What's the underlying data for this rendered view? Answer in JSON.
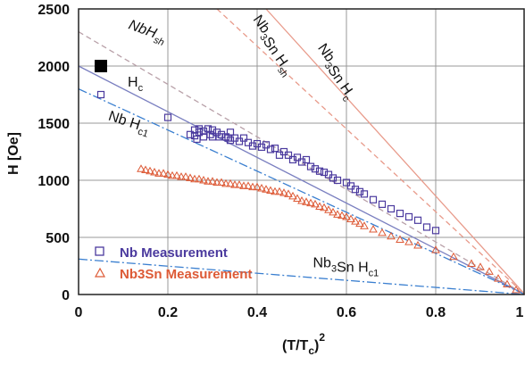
{
  "chart_data": {
    "type": "scatter",
    "xlabel": "(T/T",
    "xlabel_sub": "c",
    "xlabel_sup": "2",
    "ylabel": "H [Oe]",
    "xlim": [
      0,
      1
    ],
    "ylim": [
      0,
      2500
    ],
    "xticks": [
      "0",
      "0.2",
      "0.4",
      "0.6",
      "0.8",
      "1"
    ],
    "yticks": [
      "0",
      "500",
      "1000",
      "1500",
      "2000",
      "2500"
    ],
    "grid": true,
    "colors": {
      "nb": "#4b3a9e",
      "nb3sn": "#dd5a36",
      "hc1_line": "#3a7fd0",
      "nb_hc": "#7a7fc0",
      "nb_hsh": "#b8a0a8",
      "nb3sn_line": "#e89a8a",
      "frame": "#222222",
      "grid": "#999999"
    },
    "lines": [
      {
        "label": "Nb Hsh",
        "style": "dashed",
        "color": "nb_hsh",
        "points": [
          [
            0,
            2300
          ],
          [
            1,
            0
          ]
        ]
      },
      {
        "label": "Nb Hc",
        "style": "solid",
        "color": "nb_hc",
        "points": [
          [
            0,
            2000
          ],
          [
            1,
            0
          ]
        ]
      },
      {
        "label": "Nb Hc1",
        "style": "dashdot",
        "color": "hc1_line",
        "points": [
          [
            0,
            1800
          ],
          [
            1,
            0
          ]
        ]
      },
      {
        "label": "Nb3Sn Hsh",
        "style": "dashed",
        "color": "nb3sn_line",
        "points": [
          [
            0.31,
            2500
          ],
          [
            1,
            0
          ]
        ]
      },
      {
        "label": "Nb3Sn Hc",
        "style": "solid",
        "color": "nb3sn_line",
        "points": [
          [
            0.42,
            2500
          ],
          [
            1,
            0
          ]
        ]
      },
      {
        "label": "Nb3Sn Hc1",
        "style": "dashdot",
        "color": "hc1_line",
        "points": [
          [
            0,
            310
          ],
          [
            1,
            0
          ]
        ]
      }
    ],
    "annotations": [
      {
        "main": "Nb",
        "sub": "",
        "sub2": "",
        "tail": "H",
        "tailsub": "sh",
        "x": 0.11,
        "y": 2330,
        "rotate": 20,
        "italic": true
      },
      {
        "main": "H",
        "sub": "",
        "sub2": "",
        "tail": "",
        "tailsub": "c",
        "x": 0.11,
        "y": 1820,
        "rotate": 0,
        "italic": false
      },
      {
        "main": "Nb H",
        "sub": "",
        "sub2": "",
        "tail": "",
        "tailsub": "c1",
        "x": 0.065,
        "y": 1530,
        "rotate": 18,
        "italic": false
      },
      {
        "main": "Nb",
        "sub": "3",
        "sub2": "",
        "tail": "Sn H",
        "tailsub": "sh",
        "x": 0.39,
        "y": 2410,
        "rotate": 55,
        "italic": false
      },
      {
        "main": "Nb",
        "sub": "3",
        "sub2": "",
        "tail": "Sn H",
        "tailsub": "c",
        "x": 0.535,
        "y": 2160,
        "rotate": 55,
        "italic": false
      },
      {
        "main": "Nb",
        "sub": "3",
        "sub2": "",
        "tail": "Sn H",
        "tailsub": "c1",
        "x": 0.525,
        "y": 240,
        "rotate": 0,
        "italic": false
      }
    ],
    "legend": {
      "position": "bottom-left",
      "entries": [
        {
          "label": "Nb Measurement",
          "marker": "square",
          "color": "nb"
        },
        {
          "label": "Nb3Sn Measurement",
          "marker": "triangle",
          "color": "nb3sn"
        }
      ]
    },
    "series": [
      {
        "name": "Nb Measurement",
        "marker": "square",
        "color": "nb",
        "points": [
          [
            0.05,
            2000
          ],
          [
            0.05,
            1750
          ],
          [
            0.2,
            1550
          ],
          [
            0.25,
            1400
          ],
          [
            0.26,
            1390
          ],
          [
            0.26,
            1440
          ],
          [
            0.265,
            1360
          ],
          [
            0.27,
            1420
          ],
          [
            0.27,
            1450
          ],
          [
            0.28,
            1380
          ],
          [
            0.28,
            1430
          ],
          [
            0.29,
            1450
          ],
          [
            0.295,
            1400
          ],
          [
            0.3,
            1380
          ],
          [
            0.3,
            1440
          ],
          [
            0.31,
            1420
          ],
          [
            0.315,
            1380
          ],
          [
            0.32,
            1400
          ],
          [
            0.33,
            1380
          ],
          [
            0.335,
            1370
          ],
          [
            0.34,
            1350
          ],
          [
            0.34,
            1420
          ],
          [
            0.35,
            1370
          ],
          [
            0.36,
            1340
          ],
          [
            0.37,
            1370
          ],
          [
            0.38,
            1330
          ],
          [
            0.39,
            1300
          ],
          [
            0.4,
            1320
          ],
          [
            0.41,
            1290
          ],
          [
            0.42,
            1310
          ],
          [
            0.43,
            1270
          ],
          [
            0.44,
            1280
          ],
          [
            0.45,
            1220
          ],
          [
            0.46,
            1250
          ],
          [
            0.47,
            1220
          ],
          [
            0.48,
            1180
          ],
          [
            0.49,
            1200
          ],
          [
            0.5,
            1160
          ],
          [
            0.51,
            1180
          ],
          [
            0.52,
            1120
          ],
          [
            0.53,
            1100
          ],
          [
            0.54,
            1080
          ],
          [
            0.55,
            1070
          ],
          [
            0.56,
            1050
          ],
          [
            0.57,
            1020
          ],
          [
            0.58,
            1000
          ],
          [
            0.6,
            980
          ],
          [
            0.61,
            950
          ],
          [
            0.62,
            920
          ],
          [
            0.63,
            900
          ],
          [
            0.64,
            880
          ],
          [
            0.66,
            830
          ],
          [
            0.68,
            790
          ],
          [
            0.7,
            750
          ],
          [
            0.72,
            710
          ],
          [
            0.74,
            680
          ],
          [
            0.76,
            650
          ],
          [
            0.78,
            590
          ],
          [
            0.8,
            560
          ]
        ]
      },
      {
        "name": "Nb3Sn Measurement",
        "marker": "triangle",
        "color": "nb3sn",
        "points": [
          [
            0.14,
            1100
          ],
          [
            0.15,
            1090
          ],
          [
            0.16,
            1080
          ],
          [
            0.17,
            1070
          ],
          [
            0.18,
            1060
          ],
          [
            0.19,
            1060
          ],
          [
            0.2,
            1050
          ],
          [
            0.21,
            1040
          ],
          [
            0.22,
            1040
          ],
          [
            0.23,
            1030
          ],
          [
            0.24,
            1030
          ],
          [
            0.25,
            1020
          ],
          [
            0.26,
            1010
          ],
          [
            0.27,
            1010
          ],
          [
            0.28,
            1000
          ],
          [
            0.29,
            990
          ],
          [
            0.3,
            990
          ],
          [
            0.31,
            980
          ],
          [
            0.32,
            980
          ],
          [
            0.33,
            970
          ],
          [
            0.34,
            970
          ],
          [
            0.35,
            960
          ],
          [
            0.36,
            960
          ],
          [
            0.37,
            950
          ],
          [
            0.38,
            950
          ],
          [
            0.39,
            940
          ],
          [
            0.4,
            940
          ],
          [
            0.41,
            930
          ],
          [
            0.42,
            920
          ],
          [
            0.43,
            910
          ],
          [
            0.44,
            900
          ],
          [
            0.45,
            900
          ],
          [
            0.46,
            890
          ],
          [
            0.47,
            880
          ],
          [
            0.48,
            860
          ],
          [
            0.49,
            840
          ],
          [
            0.5,
            820
          ],
          [
            0.51,
            810
          ],
          [
            0.52,
            800
          ],
          [
            0.53,
            790
          ],
          [
            0.54,
            770
          ],
          [
            0.55,
            760
          ],
          [
            0.56,
            740
          ],
          [
            0.57,
            720
          ],
          [
            0.58,
            700
          ],
          [
            0.59,
            690
          ],
          [
            0.6,
            680
          ],
          [
            0.61,
            660
          ],
          [
            0.62,
            640
          ],
          [
            0.63,
            620
          ],
          [
            0.64,
            600
          ],
          [
            0.66,
            570
          ],
          [
            0.68,
            540
          ],
          [
            0.7,
            510
          ],
          [
            0.72,
            480
          ],
          [
            0.74,
            460
          ],
          [
            0.76,
            430
          ],
          [
            0.8,
            390
          ],
          [
            0.84,
            330
          ],
          [
            0.88,
            270
          ],
          [
            0.9,
            240
          ],
          [
            0.92,
            200
          ],
          [
            0.94,
            140
          ],
          [
            0.96,
            90
          ],
          [
            0.98,
            40
          ]
        ]
      }
    ]
  }
}
